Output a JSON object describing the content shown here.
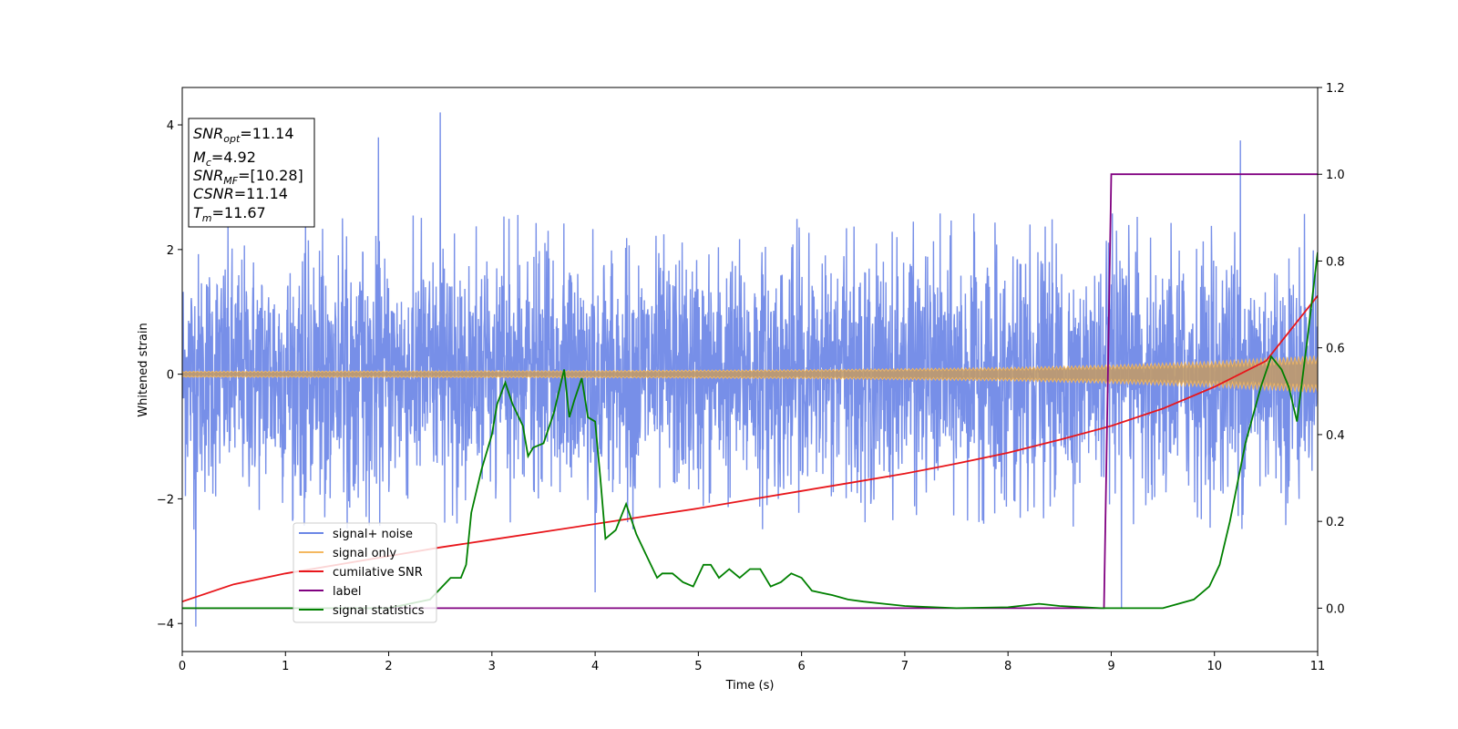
{
  "chart_data": {
    "type": "line",
    "xlabel": "Time (s)",
    "ylabel": "Whitened strain",
    "title": "",
    "xlim": [
      0,
      11
    ],
    "ylim": [
      -4.45,
      4.6
    ],
    "y2lim": [
      -0.1,
      1.2
    ],
    "x_ticks": [
      "0",
      "1",
      "2",
      "3",
      "4",
      "5",
      "6",
      "7",
      "8",
      "9",
      "10",
      "11"
    ],
    "y_ticks": [
      "−4",
      "−2",
      "0",
      "2",
      "4"
    ],
    "y2_ticks": [
      "0.0",
      "0.2",
      "0.4",
      "0.6",
      "0.8",
      "1.0",
      "1.2"
    ],
    "grid": false,
    "legend_placement": "lower-left",
    "series": [
      {
        "name": "signal+ noise",
        "axis": "left",
        "color": "#6b86e6",
        "description_values": {
          "x_start": 0,
          "x_end": 11,
          "typical_min": -2.5,
          "typical_max": 2.6,
          "max": 4.2,
          "min": -4.05
        }
      },
      {
        "name": "signal only",
        "axis": "left",
        "color": "#f4b860",
        "envelope_x": [
          0,
          2,
          4,
          6,
          8,
          9,
          10,
          11
        ],
        "envelope_amp": [
          0.05,
          0.055,
          0.06,
          0.075,
          0.11,
          0.15,
          0.21,
          0.3
        ]
      },
      {
        "name": "cumilative SNR",
        "axis": "right",
        "color": "#e8161b",
        "x": [
          0,
          0.5,
          1,
          1.5,
          2,
          2.5,
          3,
          3.5,
          4,
          4.5,
          5,
          5.5,
          6,
          6.5,
          7,
          7.5,
          8,
          8.5,
          9,
          9.5,
          10,
          10.5,
          11
        ],
        "y": [
          0.015,
          0.055,
          0.08,
          0.1,
          0.12,
          0.14,
          0.158,
          0.176,
          0.194,
          0.212,
          0.23,
          0.25,
          0.27,
          0.29,
          0.31,
          0.333,
          0.358,
          0.388,
          0.42,
          0.46,
          0.51,
          0.57,
          0.72
        ]
      },
      {
        "name": "label",
        "axis": "right",
        "color": "#800080",
        "x": [
          0,
          8.93,
          9.0,
          11
        ],
        "y": [
          0,
          0,
          1.0,
          1.0
        ]
      },
      {
        "name": "signal statistics",
        "axis": "right",
        "color": "#008000",
        "x": [
          0,
          1,
          2,
          2.4,
          2.6,
          2.7,
          2.75,
          2.8,
          2.9,
          3.0,
          3.05,
          3.13,
          3.2,
          3.3,
          3.35,
          3.4,
          3.5,
          3.6,
          3.7,
          3.75,
          3.8,
          3.87,
          3.93,
          4.0,
          4.05,
          4.1,
          4.2,
          4.3,
          4.4,
          4.5,
          4.6,
          4.65,
          4.75,
          4.85,
          4.95,
          5.05,
          5.12,
          5.2,
          5.3,
          5.4,
          5.5,
          5.6,
          5.7,
          5.8,
          5.9,
          6.0,
          6.1,
          6.2,
          6.3,
          6.45,
          6.6,
          6.8,
          7.0,
          7.2,
          7.5,
          8.0,
          8.3,
          8.5,
          8.9,
          9.5,
          9.8,
          9.95,
          10.05,
          10.15,
          10.3,
          10.45,
          10.55,
          10.65,
          10.72,
          10.8,
          10.9,
          11.0
        ],
        "y": [
          0.0,
          0.0,
          0.0,
          0.02,
          0.07,
          0.07,
          0.1,
          0.22,
          0.32,
          0.4,
          0.47,
          0.52,
          0.47,
          0.42,
          0.35,
          0.37,
          0.38,
          0.45,
          0.55,
          0.44,
          0.48,
          0.53,
          0.44,
          0.43,
          0.3,
          0.16,
          0.18,
          0.24,
          0.17,
          0.12,
          0.07,
          0.08,
          0.08,
          0.06,
          0.05,
          0.1,
          0.1,
          0.07,
          0.09,
          0.07,
          0.09,
          0.09,
          0.05,
          0.06,
          0.08,
          0.07,
          0.04,
          0.035,
          0.03,
          0.02,
          0.015,
          0.01,
          0.005,
          0.003,
          0.0,
          0.002,
          0.01,
          0.005,
          0.0,
          0.0,
          0.02,
          0.05,
          0.1,
          0.2,
          0.38,
          0.51,
          0.58,
          0.55,
          0.51,
          0.43,
          0.62,
          0.82
        ]
      }
    ],
    "annotation": {
      "line1_base": "SNR",
      "line1_sub": "opt",
      "line1_val": "=11.14",
      "line2_base": "M",
      "line2_sub": "c",
      "line2_val": "=4.92",
      "line3_base": "SNR",
      "line3_sub": "MF",
      "line3_val": "=[10.28]",
      "line4_base": "CSNR",
      "line4_val": "=11.14",
      "line5_base": "T",
      "line5_sub": "m",
      "line5_val": "=11.67"
    }
  }
}
